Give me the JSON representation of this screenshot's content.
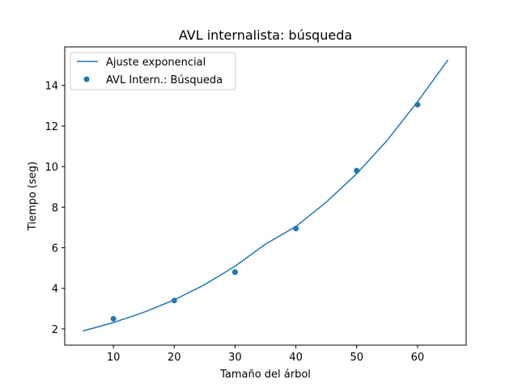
{
  "chart_data": {
    "type": "scatter",
    "title": "AVL internalista: búsqueda",
    "xlabel": "Tamaño del árbol",
    "ylabel": "Tiempo (seg)",
    "xlim": [
      2,
      68
    ],
    "ylim": [
      1.2,
      15.9
    ],
    "xticks": [
      10,
      20,
      30,
      40,
      50,
      60
    ],
    "yticks": [
      2,
      4,
      6,
      8,
      10,
      12,
      14
    ],
    "grid": false,
    "legend_position": "top-left",
    "series": [
      {
        "name": "Ajuste exponencial",
        "kind": "line",
        "color": "#1f77b4",
        "x": [
          5,
          10,
          15,
          20,
          25,
          30,
          35,
          40,
          45,
          50,
          55,
          60,
          65
        ],
        "y": [
          1.9,
          2.31,
          2.82,
          3.43,
          4.18,
          5.09,
          6.18,
          7.05,
          8.25,
          9.65,
          11.29,
          13.2,
          15.26
        ]
      },
      {
        "name": "AVL Intern.: Búsqueda",
        "kind": "scatter",
        "color": "#1f77b4",
        "x": [
          10,
          20,
          30,
          40,
          50,
          60
        ],
        "y": [
          2.5,
          3.4,
          4.8,
          6.95,
          9.8,
          13.05
        ]
      }
    ]
  }
}
